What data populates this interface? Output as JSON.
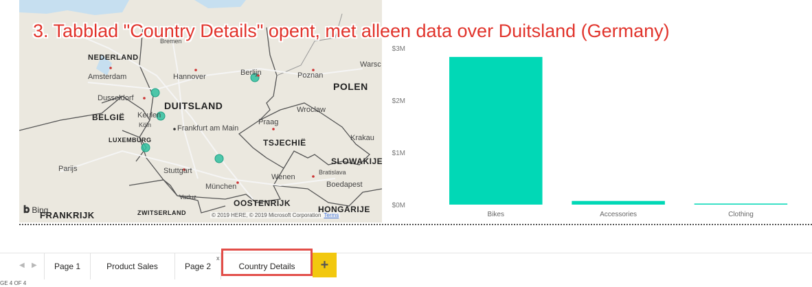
{
  "annotation": "3. Tabblad \"Country Details\" opent, met alleen data over Duitsland (Germany)",
  "map": {
    "labels": {
      "nederland": "NEDERLAND",
      "amsterdam": "Amsterdam",
      "hannover": "Hannover",
      "berlijn": "Berlijn",
      "poznan": "Poznan",
      "warsc": "Warsc",
      "polen": "POLEN",
      "dusseldorf": "Dusseldorf",
      "duitsland": "DUITSLAND",
      "wroclaw": "Wroclaw",
      "belgie": "BELGIË",
      "keulen": "Keulen",
      "koln": "Köln",
      "frankfurt": "Frankfurt am Main",
      "praag": "Praag",
      "luxemburg": "LUXEMBURG",
      "tsjechie": "TSJECHIË",
      "krakau": "Krakau",
      "parijs": "Parijs",
      "stuttgart": "Stuttgart",
      "slowakije": "SLOWAKIJE",
      "bratislava": "Bratislava",
      "wenen": "Wenen",
      "boedapest": "Boedapest",
      "munchen": "München",
      "vaduz": "Vaduz",
      "oostenrijk": "OOSTENRIJK",
      "frankrijk": "FRANKRIJK",
      "zwitserland": "ZWITSERLAND",
      "hongarije": "HONGARIJE",
      "bremen": "Bremen"
    },
    "bing": "Bing",
    "copyright": "© 2019 HERE, © 2019 Microsoft Corporation",
    "terms": "Terms"
  },
  "chart_data": {
    "type": "bar",
    "categories": [
      "Bikes",
      "Accessories",
      "Clothing"
    ],
    "values": [
      2.83,
      0.07,
      0.02
    ],
    "ylim": [
      0,
      3
    ],
    "yticks": [
      "$0M",
      "$1M",
      "$2M",
      "$3M"
    ],
    "grid": false,
    "bar_color": "#01d8b6"
  },
  "tabs": [
    {
      "label": "Page 1"
    },
    {
      "label": "Product Sales"
    },
    {
      "label": "Page 2"
    },
    {
      "label": "Country Details"
    }
  ],
  "tab_close": "x",
  "add_tab": "+",
  "page_indicator": "GE 4 OF 4",
  "colors": {
    "highlight": "#e24d48",
    "add_tab_bg": "#f2c80f"
  }
}
